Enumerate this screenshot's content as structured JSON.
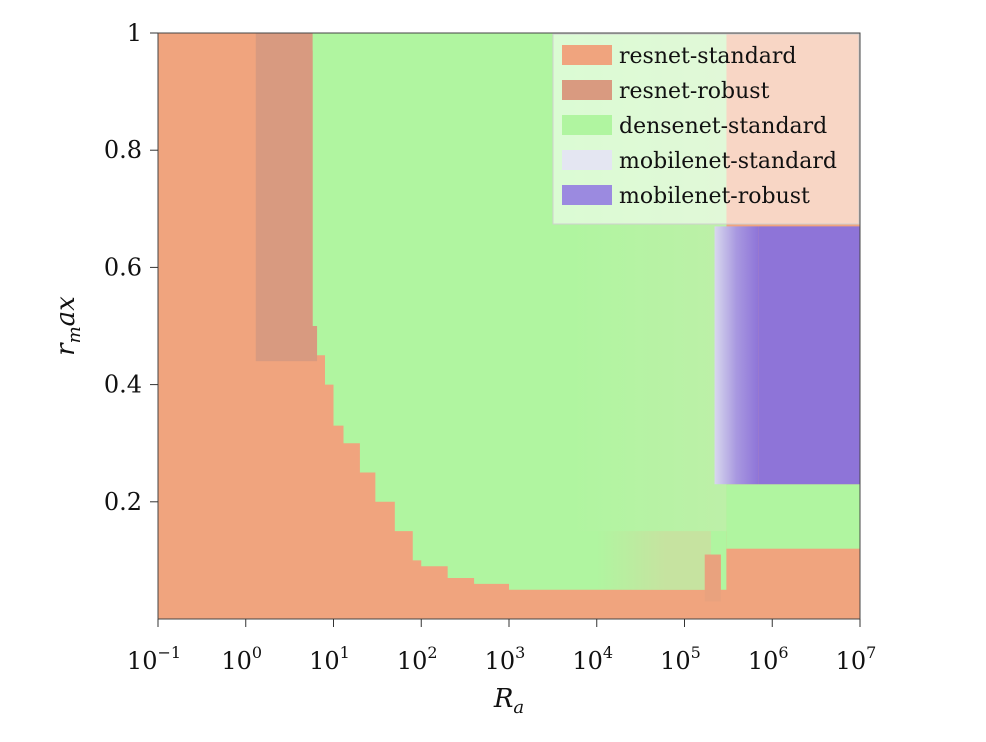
{
  "chart_data": {
    "type": "heatmap",
    "title": "",
    "xlabel": "R_a",
    "ylabel": "r_max",
    "x_scale": "log",
    "xlim": [
      0.1,
      10000000
    ],
    "ylim": [
      0.01,
      1.0
    ],
    "x_ticks": [
      0.1,
      1,
      10,
      100,
      1000,
      10000,
      100000,
      1000000,
      10000000
    ],
    "x_tick_labels": [
      {
        "base": "10",
        "exp": "−1"
      },
      {
        "base": "10",
        "exp": "0"
      },
      {
        "base": "10",
        "exp": "1"
      },
      {
        "base": "10",
        "exp": "2"
      },
      {
        "base": "10",
        "exp": "3"
      },
      {
        "base": "10",
        "exp": "4"
      },
      {
        "base": "10",
        "exp": "5"
      },
      {
        "base": "10",
        "exp": "6"
      },
      {
        "base": "10",
        "exp": "7"
      }
    ],
    "y_ticks": [
      0.2,
      0.4,
      0.6,
      0.8,
      1.0
    ],
    "y_tick_labels": [
      "0.2",
      "0.4",
      "0.6",
      "0.8",
      "1"
    ],
    "grid": false,
    "legend": {
      "placement": "top-right",
      "entries": [
        {
          "name": "resnet-standard",
          "color": "#f0a47e"
        },
        {
          "name": "resnet-robust",
          "color": "#d99a80"
        },
        {
          "name": "densenet-standard",
          "color": "#b0f5a0"
        },
        {
          "name": "mobilenet-standard",
          "color": "#e4e6f2"
        },
        {
          "name": "mobilenet-robust",
          "color": "#9b8ae0"
        }
      ]
    },
    "colors": {
      "resnet-standard": "#f0a47e",
      "resnet-robust": "#d89a80",
      "densenet-standard": "#b0f5a0",
      "mobilenet-robust": "#8e74d8",
      "densenet-standard-faded": "#bdf0a8",
      "densenet-resnet-mix": "#c6e3a0"
    },
    "regions": [
      {
        "model": "resnet-robust",
        "x_range": [
          1.3,
          6.5
        ],
        "y_range": [
          0.44,
          1.0
        ]
      },
      {
        "model": "densenet-standard",
        "y_min_by_x": [
          [
            5.8,
            0.5
          ],
          [
            6.5,
            0.45
          ],
          [
            8,
            0.4
          ],
          [
            10,
            0.33
          ],
          [
            13,
            0.3
          ],
          [
            20,
            0.25
          ],
          [
            30,
            0.2
          ],
          [
            50,
            0.15
          ],
          [
            80,
            0.1
          ],
          [
            100,
            0.09
          ],
          [
            200,
            0.07
          ],
          [
            400,
            0.06
          ],
          [
            1000,
            0.05
          ],
          [
            200000,
            0.05
          ]
        ],
        "x_max": 300000,
        "y_max": 1.0
      },
      {
        "model": "densenet-standard",
        "x_range": [
          300000,
          10000000
        ],
        "y_range": [
          0.12,
          0.23
        ]
      },
      {
        "model": "mobilenet-robust",
        "x_range": [
          300000,
          10000000
        ],
        "y_range": [
          0.23,
          0.67
        ]
      },
      {
        "model": "resnet-standard",
        "x_range": [
          300000,
          10000000
        ],
        "y_range": [
          0.01,
          0.12
        ]
      }
    ]
  }
}
